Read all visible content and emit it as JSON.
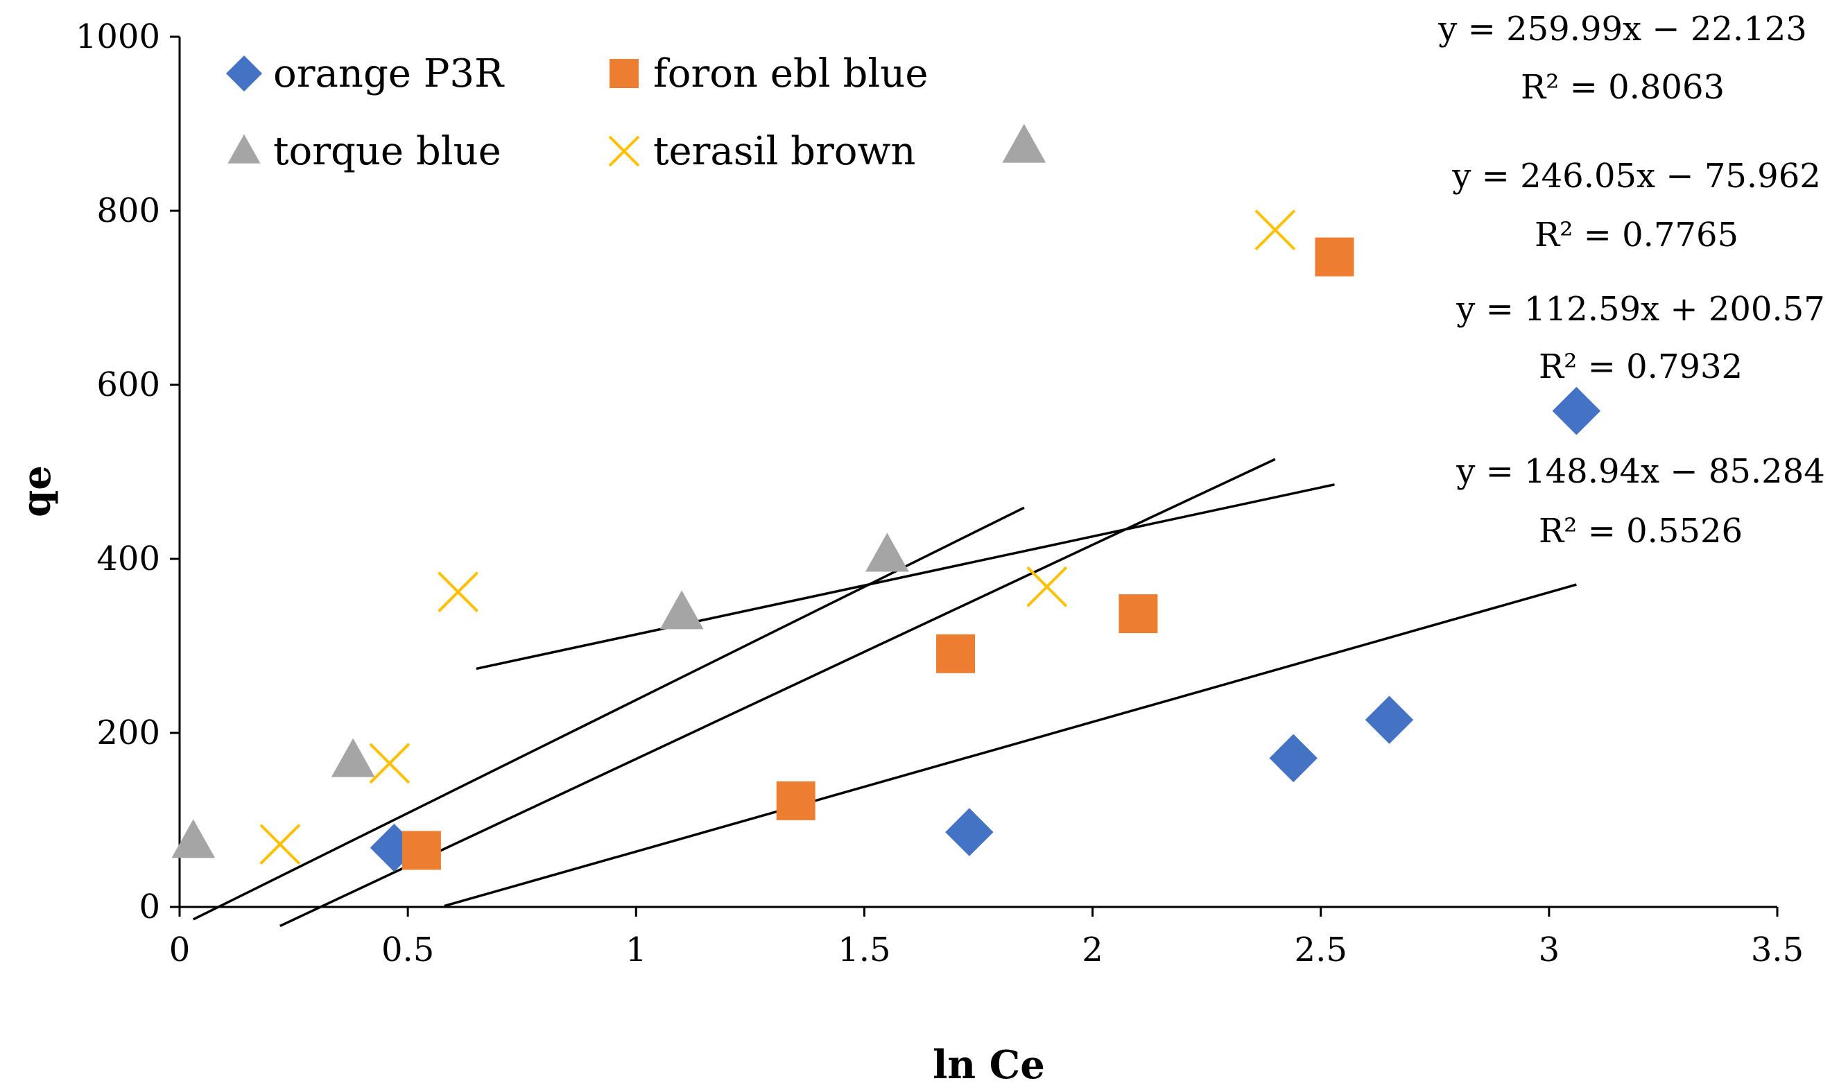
{
  "chart_data": {
    "type": "scatter",
    "title": "",
    "xlabel": "ln Ce",
    "ylabel": "qe",
    "xlim": [
      0,
      3.5
    ],
    "ylim": [
      0,
      1000
    ],
    "xticks": [
      0,
      0.5,
      1,
      1.5,
      2,
      2.5,
      3,
      3.5
    ],
    "xtick_labels": [
      "0",
      "0.5",
      "1",
      "1.5",
      "2",
      "2.5",
      "3",
      "3.5"
    ],
    "yticks": [
      0,
      200,
      400,
      600,
      800,
      1000
    ],
    "ytick_labels": [
      "0",
      "200",
      "400",
      "600",
      "800",
      "1000"
    ],
    "grid": false,
    "legend_position": "top-left",
    "series": [
      {
        "name": "orange P3R",
        "marker": "diamond",
        "color": "#4472C4",
        "x": [
          0.47,
          1.73,
          2.44,
          2.65,
          3.06
        ],
        "y": [
          68,
          86,
          171,
          215,
          570
        ],
        "trend": {
          "slope": 148.94,
          "intercept": -85.284,
          "x_range": [
            0.58,
            3.06
          ]
        }
      },
      {
        "name": "foron ebl blue",
        "marker": "square",
        "color": "#ED7D31",
        "x": [
          0.53,
          1.35,
          1.7,
          2.1,
          2.53
        ],
        "y": [
          65,
          122,
          291,
          337,
          747
        ],
        "trend": {
          "slope": 259.99,
          "intercept": -22.123,
          "x_range": [
            0.03,
            1.85
          ]
        }
      },
      {
        "name": "torque blue",
        "marker": "triangle",
        "color": "#A5A5A5",
        "x": [
          0.03,
          0.38,
          1.1,
          1.55,
          1.85
        ],
        "y": [
          75,
          168,
          338,
          404,
          874
        ],
        "trend": {
          "slope": 246.05,
          "intercept": -75.962,
          "x_range": [
            0.22,
            2.4
          ]
        }
      },
      {
        "name": "terasil brown",
        "marker": "x",
        "color": "#FFC000",
        "x": [
          0.22,
          0.46,
          0.61,
          1.9,
          2.4
        ],
        "y": [
          72,
          165,
          362,
          368,
          778
        ],
        "trend": {
          "slope": 112.59,
          "intercept": 200.57,
          "x_range": [
            0.65,
            2.53
          ]
        }
      }
    ],
    "annotations": [
      {
        "equation": "y = 259.99x − 22.123",
        "r2": "R² = 0.8063"
      },
      {
        "equation": "y = 246.05x − 75.962",
        "r2": "R² = 0.7765"
      },
      {
        "equation": "y = 112.59x + 200.57",
        "r2": "R² = 0.7932"
      },
      {
        "equation": "y = 148.94x − 85.284",
        "r2": "R² = 0.5526"
      }
    ]
  }
}
